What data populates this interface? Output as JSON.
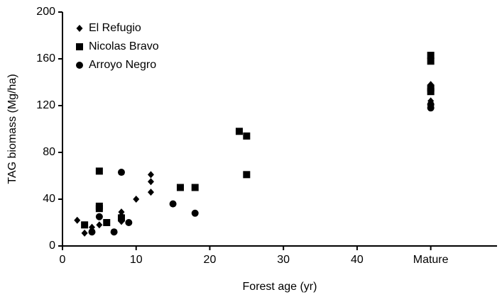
{
  "chart_data": {
    "type": "scatter",
    "xlabel": "Forest age (yr)",
    "ylabel": "TAG biomass (Mg/ha)",
    "xlim": [
      0,
      59
    ],
    "ylim": [
      0,
      200
    ],
    "xticks": [
      0,
      10,
      20,
      30,
      40,
      {
        "value": 50,
        "label": "Mature"
      }
    ],
    "yticks": [
      0,
      40,
      80,
      120,
      160,
      200
    ],
    "legend": "upper left",
    "series": [
      {
        "name": "El Refugio",
        "color": "#000000",
        "marker": "diamond",
        "x": [
          2,
          3,
          4,
          5,
          6,
          8,
          8,
          8,
          10,
          12,
          12,
          12,
          50,
          50,
          50,
          50
        ],
        "values": [
          22,
          11,
          16,
          18,
          20,
          29,
          26,
          21,
          40,
          61,
          55,
          46,
          138,
          135,
          124,
          120
        ]
      },
      {
        "name": "Nicolas Bravo",
        "color": "#000000",
        "marker": "square",
        "x": [
          3,
          5,
          5,
          5,
          6,
          8,
          16,
          18,
          24,
          25,
          25,
          50,
          50,
          50,
          50
        ],
        "values": [
          18,
          64,
          34,
          32,
          20,
          24,
          50,
          50,
          98,
          94,
          61,
          163,
          158,
          135,
          132
        ]
      },
      {
        "name": "Arroyo Negro",
        "color": "#000000",
        "marker": "circle",
        "x": [
          4,
          5,
          7,
          8,
          9,
          15,
          18,
          50,
          50
        ],
        "values": [
          12,
          25,
          12,
          63,
          20,
          36,
          28,
          118,
          121
        ]
      }
    ]
  }
}
